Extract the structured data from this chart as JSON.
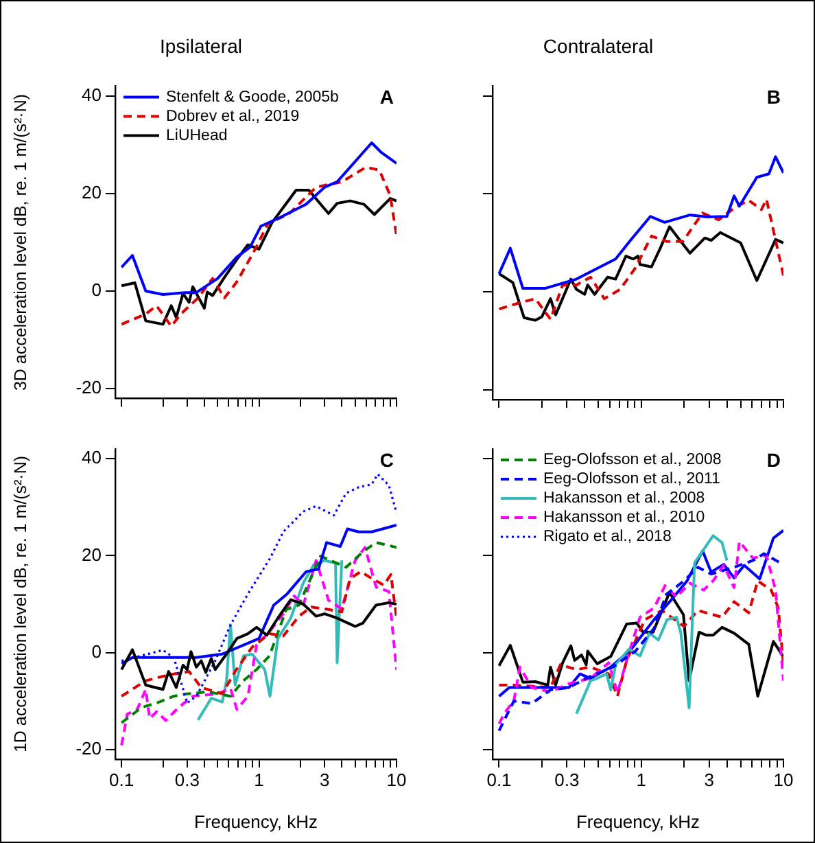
{
  "chart_data": [
    {
      "type": "line",
      "title": "Ipsilateral",
      "ylabel": "3D acceleration level dB, re. 1 m/(s²·N)",
      "log": "x",
      "xlim": [
        0.09,
        10
      ],
      "ylim": [
        -22,
        42
      ],
      "tick_labels": "y",
      "legend": "top left",
      "annotations": [
        "A"
      ],
      "xticks": [
        0.1,
        {
          "value": 0.2,
          "label": null
        },
        0.3,
        {
          "value": 0.4,
          "label": null
        },
        {
          "value": 0.5,
          "label": null
        },
        {
          "value": 0.6,
          "label": null
        },
        {
          "value": 0.7,
          "label": null
        },
        {
          "value": 0.8,
          "label": null
        },
        {
          "value": 0.9,
          "label": null
        },
        1,
        {
          "value": 2,
          "label": null
        },
        3,
        {
          "value": 4,
          "label": null
        },
        {
          "value": 5,
          "label": null
        },
        {
          "value": 6,
          "label": null
        },
        {
          "value": 7,
          "label": null
        },
        {
          "value": 8,
          "label": null
        },
        {
          "value": 9,
          "label": null
        },
        10
      ],
      "yticks": [
        -20,
        0,
        20,
        40
      ],
      "series": [
        {
          "name": "Stenfelt & Goode, 2005b",
          "color": "#0000ff",
          "line_style": "solid",
          "x": [
            0.1,
            0.12,
            0.15,
            0.2,
            0.29,
            0.35,
            0.5,
            0.69,
            0.86,
            1.03,
            1.4,
            2.2,
            3.0,
            3.7,
            6.6,
            7.7,
            10
          ],
          "values": [
            4.9,
            7.3,
            0,
            -0.7,
            -0.3,
            -0.3,
            2.6,
            7,
            9,
            13.3,
            15,
            17.8,
            21.3,
            22.4,
            30.4,
            28.5,
            26.2
          ]
        },
        {
          "name": "Dobrev et al., 2019",
          "color": "#dd0000",
          "line_style": "dashed",
          "x": [
            0.1,
            0.15,
            0.18,
            0.23,
            0.27,
            0.36,
            0.46,
            0.56,
            0.69,
            0.93,
            1.16,
            1.66,
            2.6,
            4.0,
            6.0,
            7.5,
            9.0,
            10
          ],
          "values": [
            -6.8,
            -4.7,
            -3,
            -7.2,
            -4.7,
            -1.4,
            2.6,
            -1.4,
            1.9,
            8.4,
            13.8,
            15.9,
            21.3,
            22.4,
            25.4,
            24.8,
            19.6,
            11.4
          ]
        },
        {
          "name": "LiUHead",
          "color": "#000000",
          "line_style": "solid",
          "x": [
            0.1,
            0.125,
            0.15,
            0.2,
            0.23,
            0.25,
            0.28,
            0.31,
            0.33,
            0.4,
            0.42,
            0.46,
            0.56,
            0.69,
            0.83,
            1.0,
            1.24,
            1.6,
            1.86,
            2.3,
            3.2,
            3.7,
            4.6,
            5.8,
            6.9,
            9,
            10
          ],
          "values": [
            1.1,
            1.7,
            -6.1,
            -6.8,
            -3,
            -5.4,
            -0.5,
            -2.3,
            0.9,
            -3.5,
            -0.2,
            -0.9,
            2.8,
            6.5,
            9.5,
            8.6,
            14,
            18.2,
            20.7,
            20.7,
            15.9,
            18,
            18.5,
            17.8,
            15.7,
            19,
            18.5
          ]
        }
      ]
    },
    {
      "type": "line",
      "title": "Contralateral",
      "log": "x",
      "xlim": [
        0.09,
        10
      ],
      "ylim": [
        -22,
        42
      ],
      "tick_labels": false,
      "annotations": [
        "B"
      ],
      "xticks": [
        0.1,
        {
          "value": 0.2,
          "label": null
        },
        0.3,
        {
          "value": 0.4,
          "label": null
        },
        {
          "value": 0.5,
          "label": null
        },
        {
          "value": 0.6,
          "label": null
        },
        {
          "value": 0.7,
          "label": null
        },
        {
          "value": 0.8,
          "label": null
        },
        {
          "value": 0.9,
          "label": null
        },
        1,
        {
          "value": 2,
          "label": null
        },
        3,
        {
          "value": 4,
          "label": null
        },
        {
          "value": 5,
          "label": null
        },
        {
          "value": 6,
          "label": null
        },
        {
          "value": 7,
          "label": null
        },
        {
          "value": 8,
          "label": null
        },
        {
          "value": 9,
          "label": null
        },
        10
      ],
      "yticks": [
        -20,
        0,
        20,
        40
      ],
      "series": [
        {
          "color": "#0000ff",
          "line_style": "solid",
          "x": [
            0.1,
            0.12,
            0.147,
            0.21,
            0.35,
            0.66,
            0.85,
            1.16,
            1.46,
            2.2,
            2.9,
            4.0,
            4.5,
            4.9,
            6.5,
            7.9,
            8.8,
            10
          ],
          "values": [
            3.7,
            8.9,
            0.7,
            0.7,
            2.6,
            6.7,
            10.7,
            15.4,
            14.2,
            15.7,
            15.3,
            15.4,
            19.6,
            17.5,
            23.4,
            24.1,
            27.6,
            24.3
          ]
        },
        {
          "color": "#dd0000",
          "line_style": "dashed",
          "x": [
            0.1,
            0.137,
            0.18,
            0.23,
            0.28,
            0.35,
            0.44,
            0.55,
            0.71,
            0.91,
            1.18,
            1.5,
            1.96,
            2.7,
            3.5,
            4.6,
            5.7,
            7,
            7.6,
            10
          ],
          "values": [
            -3.5,
            -2.3,
            -1.4,
            -5.6,
            1.4,
            1.4,
            3,
            -1.4,
            0.5,
            4.9,
            11.4,
            10.3,
            10.3,
            16.1,
            14.7,
            17.3,
            18.7,
            16.8,
            18.9,
            3.3
          ]
        },
        {
          "color": "#000000",
          "line_style": "solid",
          "x": [
            0.1,
            0.125,
            0.15,
            0.18,
            0.2,
            0.23,
            0.25,
            0.32,
            0.35,
            0.4,
            0.42,
            0.47,
            0.58,
            0.66,
            0.78,
            0.88,
            0.95,
            0.98,
            1.18,
            1.36,
            1.58,
            2.2,
            2.8,
            3.1,
            3.6,
            5.0,
            6.5,
            8.8,
            10
          ],
          "values": [
            3.7,
            1.9,
            -5.3,
            -5.8,
            -5.1,
            -1.4,
            -4.7,
            2.6,
            0.5,
            -0.5,
            1.4,
            -0.5,
            3,
            2.6,
            7.3,
            6.7,
            7.3,
            5.6,
            5.1,
            8.9,
            13.3,
            7.9,
            11,
            10.5,
            12.1,
            10,
            2.3,
            10.7,
            10
          ]
        }
      ]
    },
    {
      "type": "line",
      "ylabel": "1D acceleration level dB, re. 1 m/(s²·N)",
      "xlabel": "Frequency, kHz",
      "log": "x",
      "xlim": [
        0.09,
        10
      ],
      "ylim": [
        -22,
        42
      ],
      "annotations": [
        "C"
      ],
      "xticks": [
        0.1,
        {
          "value": 0.2,
          "label": null
        },
        0.3,
        {
          "value": 0.4,
          "label": null
        },
        {
          "value": 0.5,
          "label": null
        },
        {
          "value": 0.6,
          "label": null
        },
        {
          "value": 0.7,
          "label": null
        },
        {
          "value": 0.8,
          "label": null
        },
        {
          "value": 0.9,
          "label": null
        },
        1,
        {
          "value": 2,
          "label": null
        },
        3,
        {
          "value": 4,
          "label": null
        },
        {
          "value": 5,
          "label": null
        },
        {
          "value": 6,
          "label": null
        },
        {
          "value": 7,
          "label": null
        },
        {
          "value": 8,
          "label": null
        },
        {
          "value": 9,
          "label": null
        },
        10
      ],
      "yticks": [
        -20,
        0,
        20,
        40
      ],
      "series": [
        {
          "color": "#000000",
          "line_style": "solid",
          "x": [
            0.1,
            0.12,
            0.15,
            0.2,
            0.22,
            0.25,
            0.28,
            0.3,
            0.32,
            0.35,
            0.38,
            0.41,
            0.45,
            0.48,
            0.58,
            0.69,
            0.83,
            0.96,
            1.14,
            1.37,
            1.7,
            2.1,
            2.6,
            3.0,
            3.7,
            5.0,
            5.7,
            7.1,
            8.8,
            10
          ],
          "values": [
            -3.5,
            0.6,
            -6.7,
            -7.6,
            -3.9,
            -7.2,
            -2.6,
            -3.5,
            0.2,
            -3,
            -1.7,
            -4.1,
            -1.2,
            -3.5,
            -0.3,
            2.9,
            3.9,
            5.2,
            3.6,
            7.1,
            10.9,
            10,
            7.5,
            8,
            7.1,
            5.4,
            6.1,
            9.8,
            10.3,
            10
          ]
        },
        {
          "color": "#0000ff",
          "line_style": "solid",
          "x": [
            0.1,
            0.12,
            0.35,
            0.54,
            1.0,
            1.28,
            1.6,
            2.2,
            2.7,
            3.1,
            3.9,
            4.4,
            5.3,
            6.6,
            10
          ],
          "values": [
            -2.3,
            -1,
            -1,
            -0.3,
            2.9,
            9.8,
            12.1,
            16.7,
            17.2,
            22.7,
            21.9,
            25.5,
            24.9,
            24.9,
            26.3
          ]
        },
        {
          "color": "#0000ff",
          "line_style": "dotted",
          "x": [
            0.1,
            0.2,
            0.24,
            0.3,
            0.35,
            0.48,
            0.62,
            0.83,
            1.2,
            1.5,
            2.1,
            2.6,
            3.5,
            4.3,
            5.3,
            6.6,
            7.3,
            8.8,
            10
          ],
          "values": [
            -1.7,
            0.5,
            -1,
            -10.4,
            -9,
            -1.7,
            5.7,
            12.1,
            19.4,
            24.9,
            29.1,
            30.2,
            28.3,
            32.9,
            34.1,
            34.7,
            36.8,
            34.5,
            28.8
          ]
        },
        {
          "color": "#dd0000",
          "line_style": "dashed",
          "x": [
            0.1,
            0.15,
            0.2,
            0.24,
            0.31,
            0.38,
            0.54,
            0.67,
            0.89,
            1.19,
            1.5,
            1.95,
            2.4,
            3.2,
            4.0,
            4.6,
            5.5,
            6.6,
            8.1,
            9.1,
            10
          ],
          "values": [
            -9,
            -5.8,
            -4.9,
            -4.4,
            -3.9,
            -7.2,
            -8.5,
            -3.9,
            1.1,
            3.9,
            3.4,
            7.5,
            9.4,
            8.9,
            8.4,
            15.3,
            16.7,
            15.3,
            13.9,
            16.1,
            7.1
          ]
        },
        {
          "color": "#008000",
          "line_style": "dashed",
          "x": [
            0.1,
            0.14,
            0.18,
            0.24,
            0.3,
            0.43,
            0.62,
            0.77,
            0.96,
            1.19,
            1.58,
            1.95,
            2.8,
            4.3,
            5.7,
            7.1,
            10
          ],
          "values": [
            -14.5,
            -11.3,
            -10.4,
            -9,
            -8.5,
            -8.1,
            -9,
            -5.8,
            -3.5,
            -0.7,
            8.9,
            9.8,
            19.9,
            17.6,
            20.8,
            22.7,
            21.7
          ]
        },
        {
          "color": "#ff00ff",
          "line_style": "dashed",
          "x": [
            0.1,
            0.11,
            0.13,
            0.15,
            0.16,
            0.18,
            0.21,
            0.26,
            0.33,
            0.5,
            0.62,
            0.69,
            0.83,
            0.96,
            1.19,
            1.5,
            1.8,
            2.1,
            2.6,
            3.2,
            4.0,
            5.0,
            5.9,
            7.1,
            8.8,
            10
          ],
          "values": [
            -19.1,
            -12.7,
            -11.7,
            -7.6,
            -13.6,
            -12.2,
            -14,
            -11.3,
            -9,
            -8.5,
            -7.4,
            -11.7,
            -9,
            1.6,
            4.3,
            8,
            11.7,
            9.8,
            19,
            10.8,
            9,
            19,
            21.7,
            13.5,
            12.6,
            -3.5
          ]
        },
        {
          "color": "#33bbbb",
          "line_style": "solid",
          "x": [
            0.36,
            0.45,
            0.54,
            0.58,
            0.62,
            0.67,
            0.77,
            0.89,
            1.1,
            1.2,
            1.37,
            1.7,
            2.1,
            2.5,
            3.0,
            3.6,
            3.7,
            4.0
          ],
          "values": [
            -13.9,
            -9.4,
            -10.2,
            -5.8,
            5.7,
            -6.7,
            -0.7,
            -0.3,
            -3.5,
            -9,
            2.9,
            7.1,
            14.4,
            18.1,
            19,
            18.5,
            -2.1,
            19
          ]
        }
      ]
    },
    {
      "type": "line",
      "xlabel": "Frequency, kHz",
      "log": "x",
      "xlim": [
        0.09,
        10
      ],
      "ylim": [
        -22,
        42
      ],
      "tick_labels": "x",
      "legend": "top left",
      "annotations": [
        "D"
      ],
      "xticks": [
        0.1,
        {
          "value": 0.2,
          "label": null
        },
        0.3,
        {
          "value": 0.4,
          "label": null
        },
        {
          "value": 0.5,
          "label": null
        },
        {
          "value": 0.6,
          "label": null
        },
        {
          "value": 0.7,
          "label": null
        },
        {
          "value": 0.8,
          "label": null
        },
        {
          "value": 0.9,
          "label": null
        },
        1,
        {
          "value": 2,
          "label": null
        },
        3,
        {
          "value": 4,
          "label": null
        },
        {
          "value": 5,
          "label": null
        },
        {
          "value": 6,
          "label": null
        },
        {
          "value": 7,
          "label": null
        },
        {
          "value": 8,
          "label": null
        },
        {
          "value": 9,
          "label": null
        },
        10
      ],
      "yticks": [
        -20,
        0,
        20,
        40
      ],
      "series": [
        {
          "name": "Eeg-Olofsson et al., 2008",
          "color": "#008000",
          "line_style": "dashed"
        },
        {
          "name": "Eeg-Olofsson et al., 2011",
          "color": "#0000ff",
          "line_style": "dashed",
          "x": [
            0.1,
            0.127,
            0.17,
            0.23,
            0.31,
            0.41,
            0.63,
            0.91,
            1.23,
            1.5,
            2.0,
            2.5,
            3.1,
            4.5,
            6.1,
            7.3,
            9.5
          ],
          "values": [
            -16.1,
            -10,
            -10.5,
            -7.7,
            -7.2,
            -5.3,
            -3,
            0.3,
            5,
            12,
            14.8,
            17.6,
            16.2,
            17.6,
            19,
            20.4,
            18.5
          ]
        },
        {
          "name": "Hakansson et al., 2008",
          "color": "#33bbbb",
          "line_style": "solid",
          "x": [
            0.35,
            0.44,
            0.49,
            0.57,
            0.61,
            0.66,
            0.82,
            0.98,
            1.14,
            1.32,
            1.52,
            1.77,
            1.9,
            2.17,
            2.37,
            3.2,
            3.7,
            4.0
          ],
          "values": [
            -12.6,
            -5.8,
            -5.3,
            -4.4,
            -7.7,
            -2.5,
            0.7,
            -0.7,
            4,
            2.6,
            6.8,
            7.3,
            4,
            -11.4,
            18.5,
            24.1,
            22.7,
            19
          ]
        },
        {
          "name": "Hakansson et al., 2010",
          "color": "#ff00ff",
          "line_style": "dashed",
          "x": [
            0.1,
            0.11,
            0.127,
            0.14,
            0.17,
            0.23,
            0.31,
            0.44,
            0.59,
            0.68,
            0.79,
            0.98,
            1.23,
            1.47,
            1.77,
            2.2,
            2.75,
            3.2,
            3.8,
            4.5,
            4.9,
            6.1,
            7.6,
            8.8,
            10
          ],
          "values": [
            -14.7,
            -12.3,
            -10,
            -3,
            -7.2,
            -8.1,
            -6.4,
            -5.3,
            -2.1,
            -8.3,
            -1.6,
            7.3,
            9.2,
            13.8,
            11.5,
            14.3,
            12.9,
            14.8,
            18,
            13.4,
            22.9,
            19.5,
            20,
            12.9,
            -5.8
          ]
        },
        {
          "name": "Rigato et al., 2018",
          "color": "#0000ff",
          "line_style": "dotted"
        },
        {
          "color": "#0000ff",
          "line_style": "solid",
          "x": [
            0.1,
            0.118,
            0.31,
            0.37,
            0.44,
            0.61,
            0.85,
            1.23,
            1.64,
            2.1,
            2.7,
            3.1,
            3.8,
            4.5,
            5.3,
            6.8,
            8.5,
            10
          ],
          "values": [
            -9,
            -7.2,
            -7.2,
            -4.4,
            -5.3,
            -3,
            0.7,
            6.8,
            11,
            14.8,
            21,
            16.6,
            18.2,
            15.4,
            18,
            15.2,
            23.6,
            25.2
          ]
        },
        {
          "color": "#dd0000",
          "line_style": "dashed",
          "x": [
            0.1,
            0.127,
            0.23,
            0.27,
            0.35,
            0.44,
            0.59,
            0.68,
            0.79,
            1.06,
            1.4,
            2.0,
            2.5,
            3.7,
            4.5,
            5.7,
            6.6,
            8.2,
            9.2,
            10
          ],
          "values": [
            -6.7,
            -6.7,
            -7.2,
            -2.5,
            -3.5,
            -3,
            -4.4,
            -9,
            -1.6,
            6.8,
            8.7,
            5.4,
            8.7,
            7.3,
            10.5,
            8.2,
            14.8,
            12.9,
            9.2,
            -2.5
          ]
        },
        {
          "color": "#000000",
          "line_style": "solid",
          "x": [
            0.1,
            0.12,
            0.147,
            0.18,
            0.22,
            0.23,
            0.25,
            0.28,
            0.32,
            0.34,
            0.38,
            0.41,
            0.42,
            0.49,
            0.61,
            0.79,
            0.93,
            1.03,
            1.21,
            1.58,
            1.98,
            2.17,
            2.55,
            2.85,
            3.2,
            3.7,
            4.5,
            5.7,
            6.6,
            8.5,
            10
          ],
          "values": [
            -2.7,
            1.5,
            -6.1,
            -6,
            -6.7,
            -3,
            -6.7,
            -2.1,
            1.4,
            -1.6,
            -0.5,
            -2.5,
            0.3,
            -2.3,
            -0.8,
            5.9,
            6.1,
            4.2,
            4.2,
            12.4,
            7.8,
            -5.8,
            4.2,
            3.6,
            3.6,
            5.2,
            4,
            1.7,
            -9,
            2.3,
            -0.9
          ]
        }
      ]
    }
  ]
}
